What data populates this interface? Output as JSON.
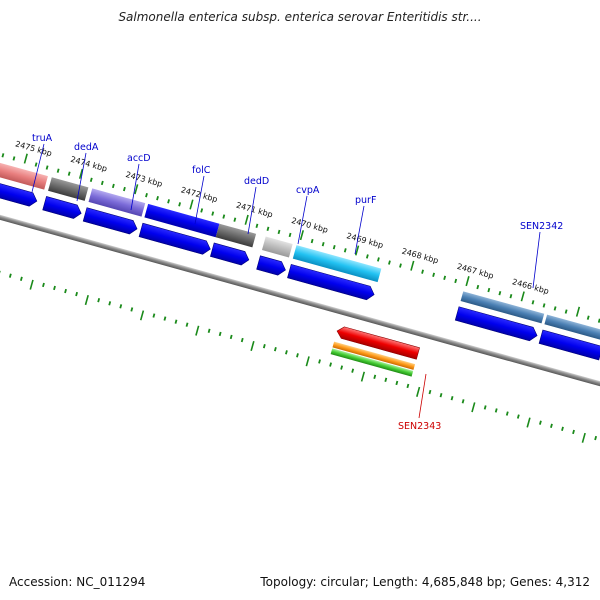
{
  "title": "Salmonella enterica subsp. enterica serovar Enteritidis str....",
  "footer": {
    "accession": "Accession: NC_011294",
    "stats": "Topology: circular; Length: 4,685,848 bp; Genes: 4,312"
  },
  "colors": {
    "backbone": "#8a8a8a",
    "tick": "#1a8a1a",
    "gene_label": "#0000cc",
    "highlight_label": "#cc0000",
    "cds": "#0000ee"
  },
  "kbp_labels": [
    "2475 kbp",
    "2474 kbp",
    "2473 kbp",
    "2472 kbp",
    "2471 kbp",
    "2470 kbp",
    "2469 kbp",
    "2468 kbp",
    "2467 kbp",
    "2466 kbp"
  ],
  "gene_labels": [
    "truA",
    "dedA",
    "accD",
    "folC",
    "dedD",
    "cvpA",
    "purF",
    "SEN2342",
    "SEN2343"
  ]
}
